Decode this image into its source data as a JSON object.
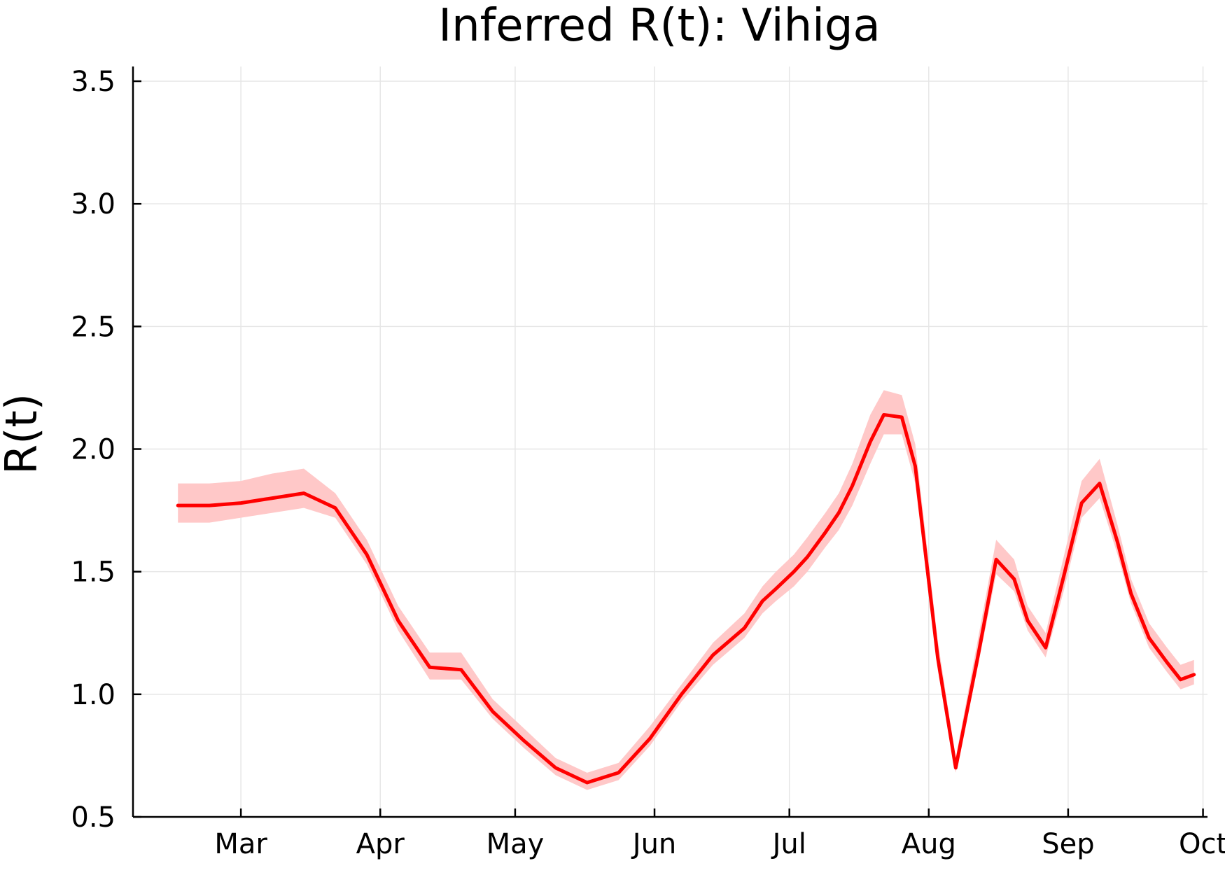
{
  "chart_data": {
    "type": "line",
    "title": "Inferred R(t): Vihiga",
    "xlabel": "",
    "ylabel": "R(t)",
    "ylim": [
      0.5,
      3.56
    ],
    "yticks": [
      "0.5",
      "1.0",
      "1.5",
      "2.0",
      "2.5",
      "3.0",
      "3.5"
    ],
    "xticks": [
      "Mar",
      "Apr",
      "May",
      "Jun",
      "Jul",
      "Aug",
      "Sep",
      "Oct"
    ],
    "grid": true,
    "legend": "none",
    "colors": {
      "line": "#ff0000",
      "band": "#ffc8c8"
    },
    "series": [
      {
        "x": [
          "2020-02-16",
          "2020-02-23",
          "2020-03-01",
          "2020-03-08",
          "2020-03-15",
          "2020-03-22",
          "2020-03-29",
          "2020-04-05",
          "2020-04-12",
          "2020-04-19",
          "2020-04-26",
          "2020-05-03",
          "2020-05-10",
          "2020-05-17",
          "2020-05-24",
          "2020-05-31",
          "2020-06-07",
          "2020-06-14",
          "2020-06-21",
          "2020-06-25",
          "2020-06-28",
          "2020-07-02",
          "2020-07-05",
          "2020-07-09",
          "2020-07-12",
          "2020-07-15",
          "2020-07-19",
          "2020-07-22",
          "2020-07-26",
          "2020-07-29",
          "2020-08-03",
          "2020-08-07",
          "2020-08-12",
          "2020-08-16",
          "2020-08-20",
          "2020-08-23",
          "2020-08-27",
          "2020-08-31",
          "2020-09-04",
          "2020-09-08",
          "2020-09-12",
          "2020-09-15",
          "2020-09-19",
          "2020-09-23",
          "2020-09-26",
          "2020-09-29"
        ],
        "values": [
          1.77,
          1.77,
          1.78,
          1.8,
          1.82,
          1.76,
          1.57,
          1.3,
          1.11,
          1.1,
          0.93,
          0.81,
          0.7,
          0.64,
          0.68,
          0.82,
          1.0,
          1.16,
          1.27,
          1.38,
          1.43,
          1.5,
          1.56,
          1.66,
          1.74,
          1.85,
          2.03,
          2.14,
          2.13,
          1.93,
          1.15,
          0.7,
          1.16,
          1.55,
          1.47,
          1.3,
          1.19,
          1.48,
          1.78,
          1.86,
          1.62,
          1.41,
          1.23,
          1.13,
          1.06,
          1.08
        ],
        "lower": [
          1.7,
          1.7,
          1.72,
          1.74,
          1.76,
          1.72,
          1.53,
          1.26,
          1.06,
          1.06,
          0.9,
          0.78,
          0.67,
          0.61,
          0.65,
          0.79,
          0.97,
          1.12,
          1.23,
          1.33,
          1.38,
          1.44,
          1.5,
          1.6,
          1.67,
          1.77,
          1.94,
          2.06,
          2.06,
          1.86,
          1.1,
          0.68,
          1.12,
          1.49,
          1.42,
          1.26,
          1.15,
          1.42,
          1.72,
          1.8,
          1.57,
          1.37,
          1.19,
          1.09,
          1.02,
          1.04
        ],
        "upper": [
          1.86,
          1.86,
          1.87,
          1.9,
          1.92,
          1.82,
          1.63,
          1.36,
          1.17,
          1.17,
          0.98,
          0.86,
          0.74,
          0.68,
          0.72,
          0.87,
          1.04,
          1.21,
          1.33,
          1.44,
          1.5,
          1.57,
          1.64,
          1.74,
          1.82,
          1.94,
          2.14,
          2.24,
          2.22,
          2.02,
          1.22,
          0.74,
          1.23,
          1.63,
          1.55,
          1.36,
          1.25,
          1.56,
          1.87,
          1.96,
          1.69,
          1.47,
          1.29,
          1.19,
          1.12,
          1.14
        ]
      }
    ]
  }
}
